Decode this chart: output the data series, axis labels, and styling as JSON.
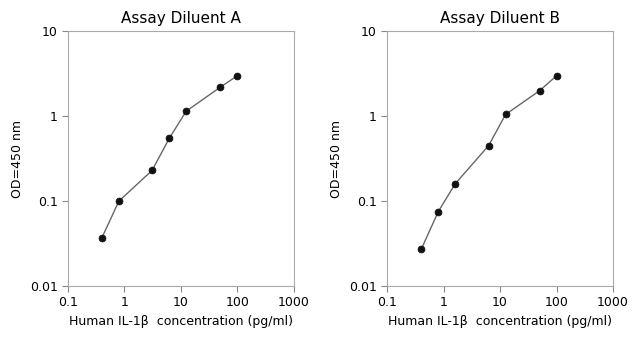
{
  "title_A": "Assay Diluent A",
  "title_B": "Assay Diluent B",
  "xlabel": "Human IL-1β  concentration (pg/ml)",
  "ylabel": "OD=450 nm",
  "xlim": [
    0.1,
    1000
  ],
  "ylim": [
    0.01,
    10
  ],
  "x_A": [
    0.4,
    0.8,
    3.1,
    6.25,
    12.5,
    50.0,
    100.0
  ],
  "y_A": [
    0.037,
    0.1,
    0.23,
    0.55,
    1.15,
    2.2,
    3.0
  ],
  "x_B": [
    0.4,
    0.8,
    1.6,
    6.25,
    12.5,
    50.0,
    100.0
  ],
  "y_B": [
    0.027,
    0.075,
    0.16,
    0.45,
    1.05,
    2.0,
    3.0
  ],
  "line_color": "#666666",
  "marker_color": "#111111",
  "bg_color": "#ffffff",
  "title_fontsize": 11,
  "label_fontsize": 9,
  "tick_fontsize": 9,
  "xticks": [
    0.1,
    1,
    10,
    100,
    1000
  ],
  "yticks": [
    0.01,
    0.1,
    1,
    10
  ],
  "xtick_labels": [
    "0.1",
    "1",
    "10",
    "100",
    "1000"
  ],
  "ytick_labels": [
    "0.01",
    "0.1",
    "1",
    "10"
  ]
}
